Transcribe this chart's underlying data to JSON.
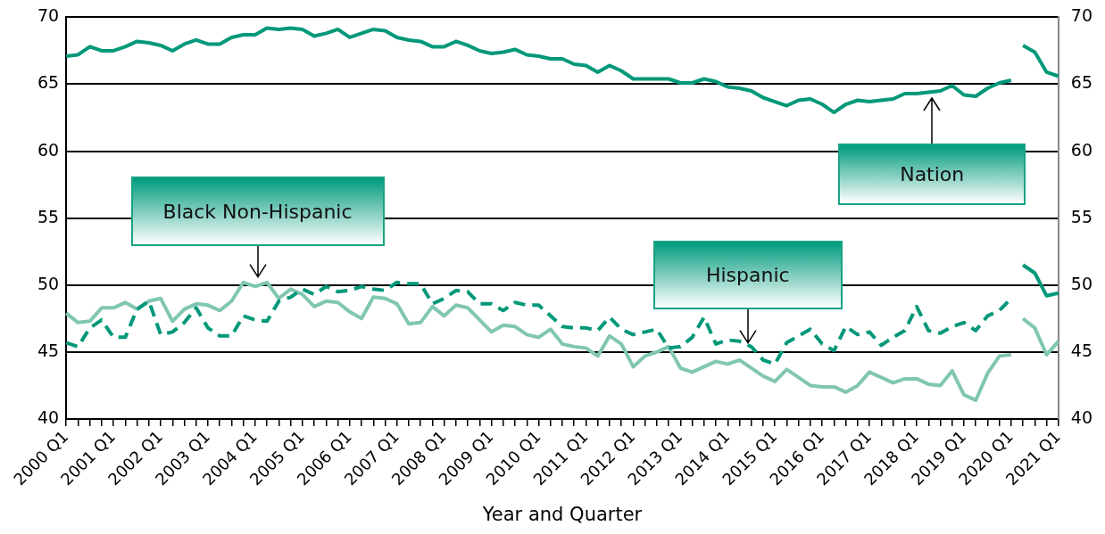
{
  "chart_data": {
    "type": "line",
    "xlabel": "Year and Quarter",
    "categories": [
      "2000 Q1",
      null,
      null,
      null,
      "2001 Q1",
      null,
      null,
      null,
      "2002 Q1",
      null,
      null,
      null,
      "2003 Q1",
      null,
      null,
      null,
      "2004 Q1",
      null,
      null,
      null,
      "2005 Q1",
      null,
      null,
      null,
      "2006 Q1",
      null,
      null,
      null,
      "2007 Q1",
      null,
      null,
      null,
      "2008 Q1",
      null,
      null,
      null,
      "2009 Q1",
      null,
      null,
      null,
      "2010 Q1",
      null,
      null,
      null,
      "2011 Q1",
      null,
      null,
      null,
      "2012 Q1",
      null,
      null,
      null,
      "2013 Q1",
      null,
      null,
      null,
      "2014 Q1",
      null,
      null,
      null,
      "2015 Q1",
      null,
      null,
      null,
      "2016 Q1",
      null,
      null,
      null,
      "2017 Q1",
      null,
      null,
      null,
      "2018 Q1",
      null,
      null,
      null,
      "2019 Q1",
      null,
      null,
      null,
      "2020 Q1",
      null,
      null,
      null,
      "2021 Q1"
    ],
    "series": [
      {
        "name": "Nation",
        "color": "#009879",
        "line_style": "solid",
        "values": [
          67.1,
          67.2,
          67.8,
          67.5,
          67.5,
          67.8,
          68.2,
          68.1,
          67.9,
          67.5,
          68.0,
          68.3,
          68.0,
          68.0,
          68.5,
          68.7,
          68.7,
          69.2,
          69.1,
          69.2,
          69.1,
          68.6,
          68.8,
          69.1,
          68.5,
          68.8,
          69.1,
          69.0,
          68.5,
          68.3,
          68.2,
          67.8,
          67.8,
          68.2,
          67.9,
          67.5,
          67.3,
          67.4,
          67.6,
          67.2,
          67.1,
          66.9,
          66.9,
          66.5,
          66.4,
          65.9,
          66.4,
          66.0,
          65.4,
          65.4,
          65.4,
          65.4,
          65.1,
          65.1,
          65.4,
          65.2,
          64.8,
          64.7,
          64.5,
          64.0,
          63.7,
          63.4,
          63.8,
          63.9,
          63.5,
          62.9,
          63.5,
          63.8,
          63.7,
          63.8,
          63.9,
          64.3,
          64.3,
          64.4,
          64.5,
          64.9,
          64.2,
          64.1,
          64.7,
          65.1,
          65.3,
          null,
          null,
          null,
          null
        ]
      },
      {
        "name": "Black Non-Hispanic",
        "color": "#80c6b2",
        "line_style": "solid",
        "values": [
          47.9,
          47.2,
          47.3,
          48.3,
          48.3,
          48.7,
          48.2,
          48.8,
          49.0,
          47.3,
          48.2,
          48.6,
          48.5,
          48.1,
          48.8,
          50.2,
          49.9,
          50.2,
          49.0,
          49.7,
          49.3,
          48.4,
          48.8,
          48.7,
          48.0,
          47.5,
          49.1,
          49.0,
          48.6,
          47.1,
          47.2,
          48.4,
          47.7,
          48.5,
          48.3,
          47.4,
          46.5,
          47.0,
          46.9,
          46.3,
          46.1,
          46.7,
          45.6,
          45.4,
          45.3,
          44.7,
          46.2,
          45.6,
          43.9,
          44.7,
          45.0,
          45.4,
          43.8,
          43.5,
          43.9,
          44.3,
          44.1,
          44.4,
          43.8,
          43.2,
          42.8,
          43.7,
          43.1,
          42.5,
          42.4,
          42.4,
          42.0,
          42.5,
          43.5,
          43.1,
          42.7,
          43.0,
          43.0,
          42.6,
          42.5,
          43.6,
          41.8,
          41.4,
          43.4,
          44.7,
          44.8,
          null,
          null,
          null,
          null
        ]
      },
      {
        "name": "Hispanic",
        "color": "#009879",
        "line_style": "dashed",
        "values": [
          45.7,
          45.4,
          46.8,
          47.4,
          46.1,
          46.1,
          48.2,
          48.8,
          46.3,
          46.5,
          47.2,
          48.3,
          46.8,
          46.2,
          46.2,
          47.7,
          47.4,
          47.3,
          48.8,
          49.1,
          49.7,
          49.3,
          49.9,
          49.5,
          49.6,
          49.9,
          49.7,
          49.6,
          50.2,
          50.1,
          50.1,
          48.6,
          49.0,
          49.6,
          49.5,
          48.6,
          48.6,
          48.1,
          48.7,
          48.5,
          48.5,
          47.7,
          46.9,
          46.8,
          46.8,
          46.6,
          47.6,
          46.7,
          46.3,
          46.5,
          46.7,
          45.3,
          45.4,
          46.1,
          47.6,
          45.6,
          45.9,
          45.8,
          45.4,
          44.4,
          44.1,
          45.7,
          46.2,
          46.7,
          45.6,
          45.1,
          46.9,
          46.3,
          46.5,
          45.5,
          46.1,
          46.6,
          48.4,
          46.6,
          46.4,
          46.9,
          47.2,
          46.6,
          47.7,
          48.1,
          49.0,
          null,
          null,
          null,
          null
        ]
      },
      {
        "color": "#009879",
        "line_style": "solid",
        "values": [
          null,
          null,
          null,
          null,
          null,
          null,
          null,
          null,
          null,
          null,
          null,
          null,
          null,
          null,
          null,
          null,
          null,
          null,
          null,
          null,
          null,
          null,
          null,
          null,
          null,
          null,
          null,
          null,
          null,
          null,
          null,
          null,
          null,
          null,
          null,
          null,
          null,
          null,
          null,
          null,
          null,
          null,
          null,
          null,
          null,
          null,
          null,
          null,
          null,
          null,
          null,
          null,
          null,
          null,
          null,
          null,
          null,
          null,
          null,
          null,
          null,
          null,
          null,
          null,
          null,
          null,
          null,
          null,
          null,
          null,
          null,
          null,
          null,
          null,
          null,
          null,
          null,
          null,
          null,
          null,
          null,
          67.9,
          67.4,
          65.9,
          65.6
        ]
      },
      {
        "color": "#80c6b2",
        "line_style": "solid",
        "values": [
          null,
          null,
          null,
          null,
          null,
          null,
          null,
          null,
          null,
          null,
          null,
          null,
          null,
          null,
          null,
          null,
          null,
          null,
          null,
          null,
          null,
          null,
          null,
          null,
          null,
          null,
          null,
          null,
          null,
          null,
          null,
          null,
          null,
          null,
          null,
          null,
          null,
          null,
          null,
          null,
          null,
          null,
          null,
          null,
          null,
          null,
          null,
          null,
          null,
          null,
          null,
          null,
          null,
          null,
          null,
          null,
          null,
          null,
          null,
          null,
          null,
          null,
          null,
          null,
          null,
          null,
          null,
          null,
          null,
          null,
          null,
          null,
          null,
          null,
          null,
          null,
          null,
          null,
          null,
          null,
          null,
          47.5,
          46.8,
          44.8,
          45.8
        ]
      },
      {
        "color": "#009879",
        "line_style": "solid",
        "values": [
          null,
          null,
          null,
          null,
          null,
          null,
          null,
          null,
          null,
          null,
          null,
          null,
          null,
          null,
          null,
          null,
          null,
          null,
          null,
          null,
          null,
          null,
          null,
          null,
          null,
          null,
          null,
          null,
          null,
          null,
          null,
          null,
          null,
          null,
          null,
          null,
          null,
          null,
          null,
          null,
          null,
          null,
          null,
          null,
          null,
          null,
          null,
          null,
          null,
          null,
          null,
          null,
          null,
          null,
          null,
          null,
          null,
          null,
          null,
          null,
          null,
          null,
          null,
          null,
          null,
          null,
          null,
          null,
          null,
          null,
          null,
          null,
          null,
          null,
          null,
          null,
          null,
          null,
          null,
          null,
          null,
          51.5,
          50.9,
          49.2,
          49.4
        ]
      }
    ],
    "ylim": [
      40,
      70
    ],
    "yticks": [
      40,
      45,
      50,
      55,
      60,
      65,
      70
    ],
    "y2lim": [
      40,
      70
    ],
    "y2ticks": [
      40,
      45,
      50,
      55,
      60,
      65,
      70
    ],
    "grid": "y",
    "legend": false
  }
}
